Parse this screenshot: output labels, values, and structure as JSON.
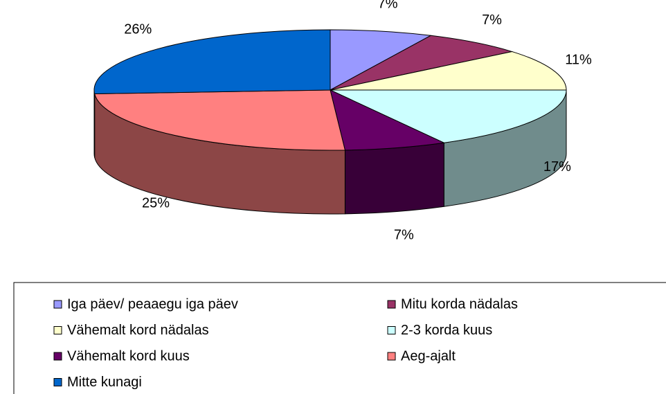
{
  "chart_data": {
    "type": "pie3d",
    "categories": [
      "Iga päev/ peaaegu iga päev",
      "Mitu korda nädalas",
      "Vähemalt kord nädalas",
      "2-3 korda kuus",
      "Vähemalt kord kuus",
      "Aeg-ajalt",
      "Mitte kunagi"
    ],
    "series": [
      {
        "values": [
          7,
          7,
          11,
          17,
          7,
          25,
          26
        ],
        "value_labels": [
          "7%",
          "7%",
          "11%",
          "17%",
          "7%",
          "25%",
          "26%"
        ],
        "colors": [
          "#9999ff",
          "#993366",
          "#ffffcc",
          "#ccffff",
          "#660066",
          "#ff8080",
          "#0066cc"
        ]
      }
    ],
    "legend": "bottom"
  }
}
